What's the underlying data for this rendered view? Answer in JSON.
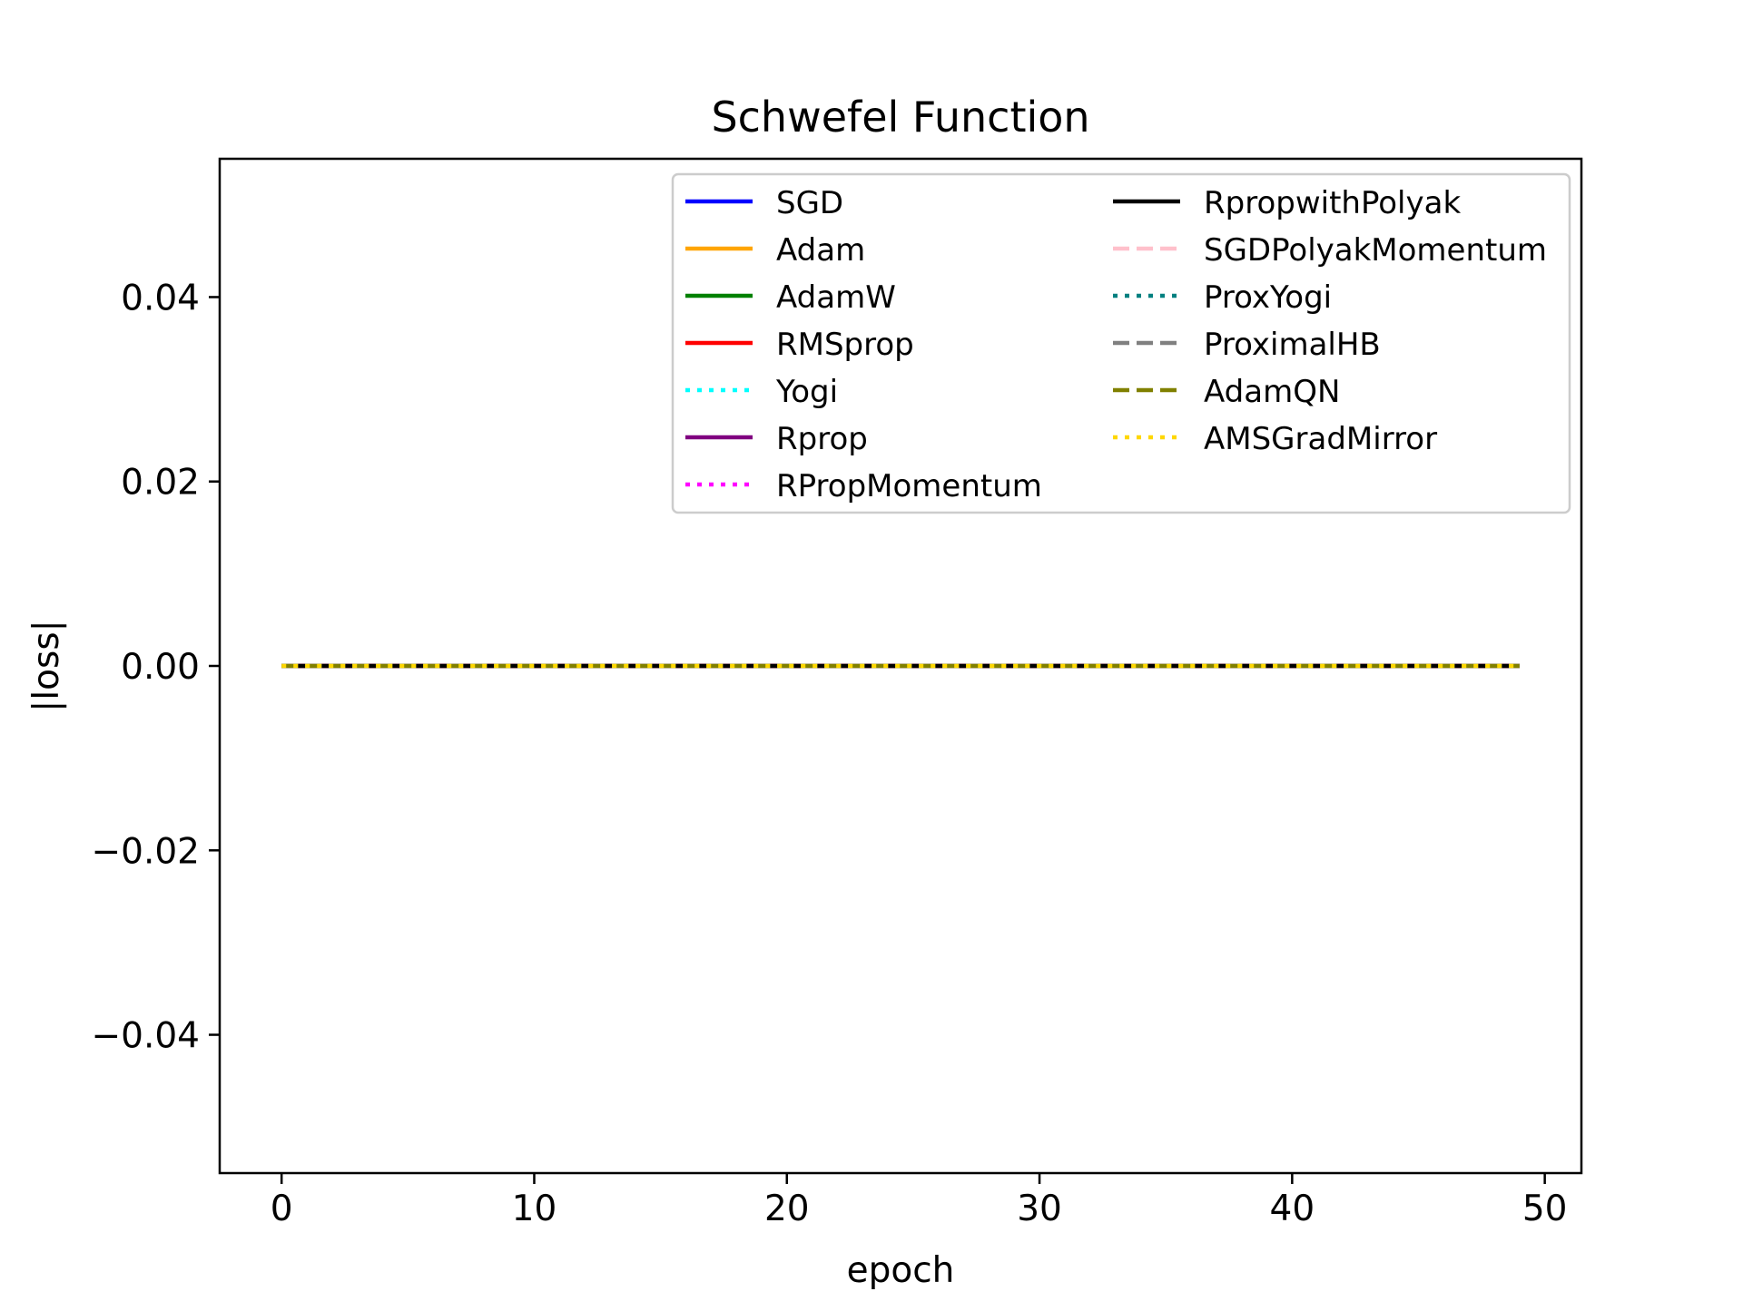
{
  "chart_data": {
    "type": "line",
    "title": "Schwefel Function",
    "xlabel": "epoch",
    "ylabel": "|loss|",
    "xlim": [
      -2.45,
      51.45
    ],
    "ylim": [
      -0.055,
      0.055
    ],
    "xticks": [
      0,
      10,
      20,
      30,
      40,
      50
    ],
    "xtick_labels": [
      "0",
      "10",
      "20",
      "30",
      "40",
      "50"
    ],
    "yticks": [
      -0.04,
      -0.02,
      0.0,
      0.02,
      0.04
    ],
    "ytick_labels": [
      "−0.04",
      "−0.02",
      "0.00",
      "0.02",
      "0.04"
    ],
    "grid": false,
    "legend_position": "top-right",
    "legend_columns": 2,
    "x": [
      0,
      49
    ],
    "series": [
      {
        "name": "SGD",
        "color": "#0000ff",
        "dash": "solid",
        "values": [
          0,
          0
        ]
      },
      {
        "name": "Adam",
        "color": "#ffa500",
        "dash": "solid",
        "values": [
          0,
          0
        ]
      },
      {
        "name": "AdamW",
        "color": "#008000",
        "dash": "solid",
        "values": [
          0,
          0
        ]
      },
      {
        "name": "RMSprop",
        "color": "#ff0000",
        "dash": "solid",
        "values": [
          0,
          0
        ]
      },
      {
        "name": "Yogi",
        "color": "#00ffff",
        "dash": "dotted",
        "values": [
          0,
          0
        ]
      },
      {
        "name": "Rprop",
        "color": "#800080",
        "dash": "solid",
        "values": [
          0,
          0
        ]
      },
      {
        "name": "RPropMomentum",
        "color": "#ff00ff",
        "dash": "dotted",
        "values": [
          0,
          0
        ]
      },
      {
        "name": "RpropwithPolyak",
        "color": "#000000",
        "dash": "solid",
        "values": [
          0,
          0
        ]
      },
      {
        "name": "SGDPolyakMomentum",
        "color": "#ffc0cb",
        "dash": "dashed",
        "values": [
          0,
          0
        ]
      },
      {
        "name": "ProxYogi",
        "color": "#008080",
        "dash": "dotted",
        "values": [
          0,
          0
        ]
      },
      {
        "name": "ProximalHB",
        "color": "#808080",
        "dash": "dashed",
        "values": [
          0,
          0
        ]
      },
      {
        "name": "AdamQN",
        "color": "#808000",
        "dash": "dashed",
        "values": [
          0,
          0
        ]
      },
      {
        "name": "AMSGradMirror",
        "color": "#ffd700",
        "dash": "dotted",
        "values": [
          0,
          0
        ]
      }
    ]
  }
}
